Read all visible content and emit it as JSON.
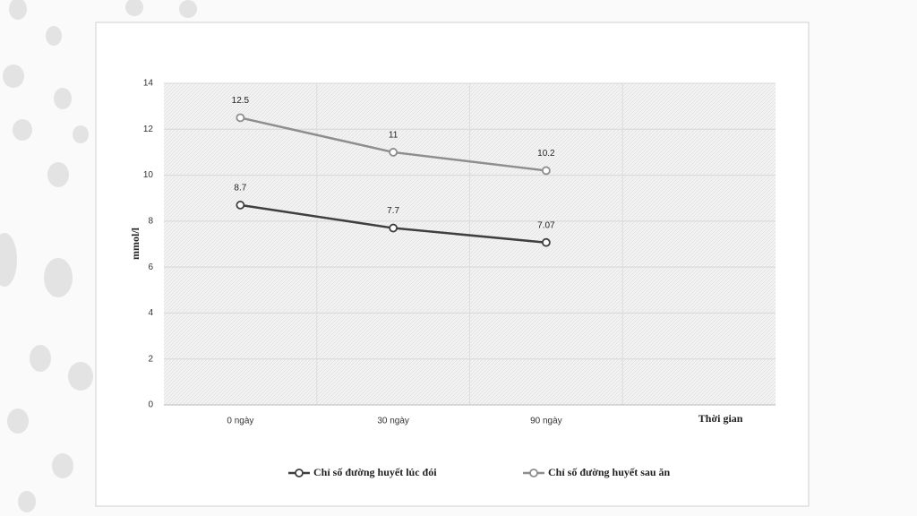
{
  "chart_data": {
    "type": "line",
    "y_label": "mmol/l",
    "x_label": "Thời gian",
    "categories": [
      "0 ngày",
      "30 ngày",
      "90 ngày"
    ],
    "series": [
      {
        "name": "Chỉ số đường huyết lúc đói",
        "color": "#3f3f3f",
        "values": [
          8.7,
          7.7,
          7.07
        ]
      },
      {
        "name": "Chỉ số đường huyết sau ăn",
        "color": "#8e8e8e",
        "values": [
          12.5,
          11,
          10.2
        ]
      }
    ],
    "ylim": [
      0,
      14
    ],
    "yticks": [
      0,
      2,
      4,
      6,
      8,
      10,
      12,
      14
    ],
    "grid": true,
    "legend": "bottom"
  }
}
